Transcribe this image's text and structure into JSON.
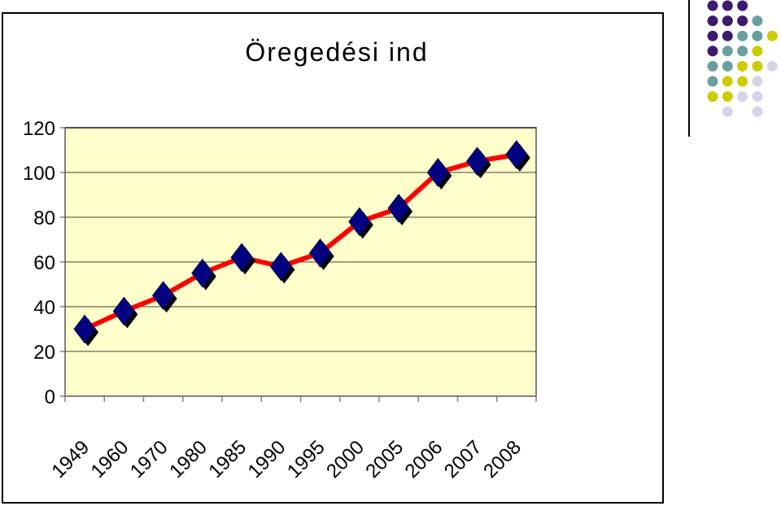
{
  "chart_data": {
    "type": "line",
    "title": "Öregedési ind",
    "categories": [
      "1949",
      "1960",
      "1970",
      "1980",
      "1985",
      "1990",
      "1995",
      "2000",
      "2005",
      "2006",
      "2007",
      "2008"
    ],
    "series": [
      {
        "values": [
          30,
          38,
          45,
          55,
          62,
          58,
          64,
          78,
          84,
          100,
          105,
          108
        ]
      }
    ],
    "ylim": [
      0,
      120
    ],
    "yticks": [
      "0",
      "20",
      "40",
      "60",
      "80",
      "100",
      "120"
    ],
    "grid": true,
    "legend": "none",
    "colors": {
      "line": "#ff0000",
      "marker": "#000080",
      "marker_shadow": "#000000",
      "plot_bg": "#ffffcc",
      "grid": "#000000"
    }
  },
  "decor": {
    "dot_colors": {
      "purple": "#3d1a6e",
      "teal": "#6a9fa0",
      "yellow": "#cccc00",
      "lavender": "#d5d5e8"
    },
    "dot_pattern": [
      [
        "purple",
        "purple",
        "purple",
        "",
        ""
      ],
      [
        "purple",
        "purple",
        "purple",
        "teal",
        ""
      ],
      [
        "purple",
        "purple",
        "teal",
        "teal",
        "yellow"
      ],
      [
        "purple",
        "teal",
        "teal",
        "yellow",
        ""
      ],
      [
        "teal",
        "teal",
        "yellow",
        "yellow",
        "lavender"
      ],
      [
        "teal",
        "yellow",
        "yellow",
        "lavender",
        ""
      ],
      [
        "yellow",
        "yellow",
        "lavender",
        "lavender",
        ""
      ],
      [
        "",
        "lavender",
        "",
        "lavender",
        ""
      ]
    ]
  }
}
